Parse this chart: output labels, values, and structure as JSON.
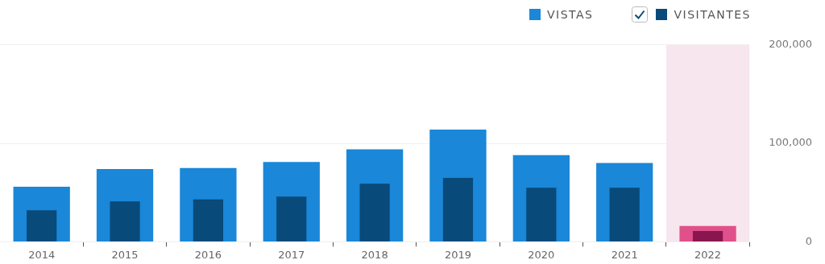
{
  "chart_data": {
    "type": "bar",
    "categories": [
      "2014",
      "2015",
      "2016",
      "2017",
      "2018",
      "2019",
      "2020",
      "2021",
      "2022"
    ],
    "series": [
      {
        "name": "VISTAS",
        "color": "#1a87d8",
        "colors": [
          "#1a87d8",
          "#1a87d8",
          "#1a87d8",
          "#1a87d8",
          "#1a87d8",
          "#1a87d8",
          "#1a87d8",
          "#1a87d8",
          "#e0508a"
        ],
        "values": [
          56000,
          74000,
          75000,
          81000,
          94000,
          114000,
          88000,
          80000,
          16000
        ]
      },
      {
        "name": "VISITANTES",
        "color": "#084a7a",
        "colors": [
          "#084a7a",
          "#084a7a",
          "#084a7a",
          "#084a7a",
          "#084a7a",
          "#084a7a",
          "#084a7a",
          "#084a7a",
          "#8a1650"
        ],
        "values": [
          32000,
          41000,
          43000,
          46000,
          59000,
          65000,
          55000,
          55000,
          11000
        ]
      }
    ],
    "ylim": [
      0,
      200000
    ],
    "yticks": [
      0,
      {
        "value": 100000,
        "label": "100,000"
      },
      {
        "value": 200000,
        "label": "200,000"
      }
    ],
    "bands": [
      {
        "axis": "x",
        "from": "2022",
        "to": "2022",
        "color": "#f7e6ee"
      }
    ],
    "grid": "y",
    "legend": "top right"
  }
}
